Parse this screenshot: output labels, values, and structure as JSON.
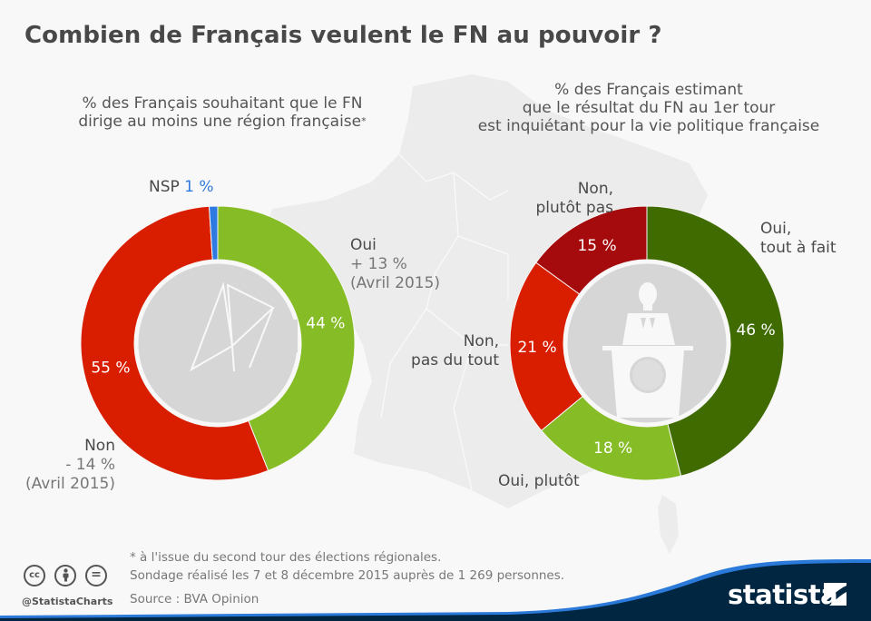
{
  "title": "Combien de Français veulent le FN au pouvoir ?",
  "left": {
    "subtitle_line1": "%  des Français souhaitant que le FN",
    "subtitle_line2": "dirige au moins une région française",
    "subtitle_mark": "*",
    "labels": {
      "nsp": "NSP",
      "nsp_value": "1 %",
      "oui": "Oui",
      "oui_change": "+ 13 %",
      "oui_ref": "(Avril 2015)",
      "non": "Non",
      "non_change": "- 14 %",
      "non_ref": "(Avril 2015)"
    },
    "center_icon": "ballot-box-icon"
  },
  "right": {
    "subtitle_line1": "% des Français estimant",
    "subtitle_line2": "que le résultat du FN au 1er tour",
    "subtitle_line3": "est inquiétant pour la vie politique française",
    "labels": {
      "oui_tout_1": "Oui,",
      "oui_tout_2": "tout à fait",
      "oui_plutot": "Oui, plutôt",
      "non_pas_1": "Non,",
      "non_pas_2": "pas du tout",
      "non_plutot_1": "Non,",
      "non_plutot_2": "plutôt pas"
    },
    "center_icon": "speaker-podium-icon"
  },
  "chart_data": [
    {
      "type": "pie",
      "title": "%  des Français souhaitant que le FN dirige au moins une région française*",
      "donut": true,
      "categories": [
        "Oui",
        "Non",
        "NSP"
      ],
      "values": [
        44,
        55,
        1
      ],
      "value_labels": [
        "44 %",
        "55 %",
        "1 %"
      ],
      "colors": [
        "#86bc25",
        "#d91e00",
        "#2f7ae0"
      ],
      "annotations": {
        "Oui": "+ 13 % (Avril 2015)",
        "Non": "- 14 % (Avril 2015)"
      }
    },
    {
      "type": "pie",
      "title": "% des Français estimant que le résultat du FN au 1er tour est inquiétant pour la vie politique française",
      "donut": true,
      "categories": [
        "Oui, tout à fait",
        "Oui, plutôt",
        "Non, pas du tout",
        "Non, plutôt pas"
      ],
      "values": [
        46,
        18,
        21,
        15
      ],
      "value_labels": [
        "46 %",
        "18 %",
        "21 %",
        "15 %"
      ],
      "colors": [
        "#3f6b00",
        "#86bc25",
        "#d91e00",
        "#a50a0c"
      ]
    }
  ],
  "footer": {
    "note": "* à l'issue du second tour des élections régionales.",
    "survey": "Sondage réalisé les 7 et 8 décembre 2015 auprès de 1 269 personnes.",
    "source": "Source : BVA Opinion",
    "handle": "@StatistaCharts",
    "cc": "cc",
    "eq": "=",
    "brand": "statista",
    "brand_color": "#002642",
    "accent_color": "#2b7ad9"
  }
}
